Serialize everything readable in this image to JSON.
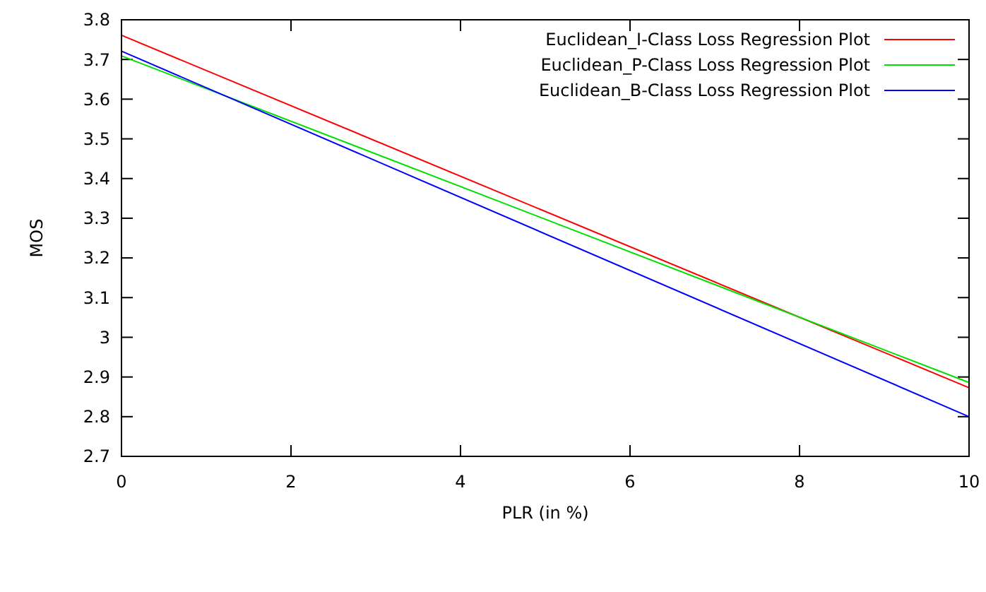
{
  "chart_data": {
    "type": "line",
    "xlabel": "PLR (in %)",
    "ylabel": "MOS",
    "xlim": [
      0,
      10
    ],
    "xticks": [
      0,
      2,
      4,
      6,
      8,
      10
    ],
    "ylim": [
      2.7,
      3.8
    ],
    "yticks": [
      2.7,
      2.8,
      2.9,
      3,
      3.1,
      3.2,
      3.3,
      3.4,
      3.5,
      3.6,
      3.7,
      3.8
    ],
    "grid": false,
    "legend": "top right",
    "marker": "none",
    "line_style": "solid",
    "x": [
      0,
      10
    ],
    "series": [
      {
        "name": "Euclidean_I-Class Loss Regression Plot",
        "color": "#ff0000",
        "values": [
          3.761,
          2.873
        ]
      },
      {
        "name": "Euclidean_P-Class Loss Regression Plot",
        "color": "#00e000",
        "values": [
          3.709,
          2.886
        ]
      },
      {
        "name": "Euclidean_B-Class Loss Regression Plot",
        "color": "#0000ff",
        "values": [
          3.721,
          2.8
        ]
      }
    ]
  }
}
